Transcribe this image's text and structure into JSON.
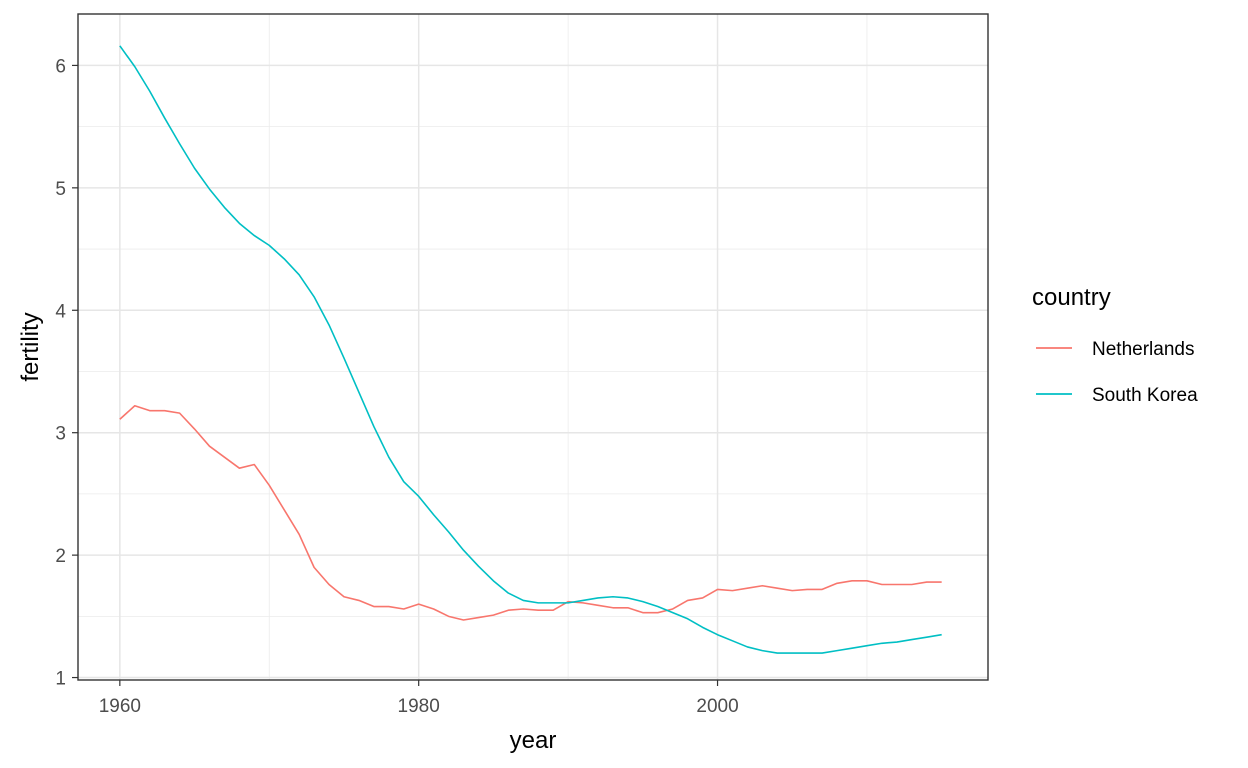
{
  "chart_data": {
    "type": "line",
    "title": "",
    "xlabel": "year",
    "ylabel": "fertility",
    "xlim": [
      1957.2,
      2018.1
    ],
    "ylim": [
      0.98,
      6.42
    ],
    "xticks": [
      1960,
      1980,
      2000
    ],
    "yticks": [
      1,
      2,
      3,
      4,
      5,
      6
    ],
    "grid": true,
    "legend": {
      "title": "country",
      "position": "right"
    },
    "series": [
      {
        "name": "Netherlands",
        "color": "#F8766D",
        "x": [
          1960,
          1961,
          1962,
          1963,
          1964,
          1965,
          1966,
          1967,
          1968,
          1969,
          1970,
          1971,
          1972,
          1973,
          1974,
          1975,
          1976,
          1977,
          1978,
          1979,
          1980,
          1981,
          1982,
          1983,
          1984,
          1985,
          1986,
          1987,
          1988,
          1989,
          1990,
          1991,
          1992,
          1993,
          1994,
          1995,
          1996,
          1997,
          1998,
          1999,
          2000,
          2001,
          2002,
          2003,
          2004,
          2005,
          2006,
          2007,
          2008,
          2009,
          2010,
          2011,
          2012,
          2013,
          2014,
          2015
        ],
        "y": [
          3.11,
          3.22,
          3.18,
          3.18,
          3.16,
          3.03,
          2.89,
          2.8,
          2.71,
          2.74,
          2.57,
          2.37,
          2.17,
          1.9,
          1.76,
          1.66,
          1.63,
          1.58,
          1.58,
          1.56,
          1.6,
          1.56,
          1.5,
          1.47,
          1.49,
          1.51,
          1.55,
          1.56,
          1.55,
          1.55,
          1.62,
          1.61,
          1.59,
          1.57,
          1.57,
          1.53,
          1.53,
          1.56,
          1.63,
          1.65,
          1.72,
          1.71,
          1.73,
          1.75,
          1.73,
          1.71,
          1.72,
          1.72,
          1.77,
          1.79,
          1.79,
          1.76,
          1.76,
          1.76,
          1.78,
          1.78
        ]
      },
      {
        "name": "South Korea",
        "color": "#00BFC4",
        "x": [
          1960,
          1961,
          1962,
          1963,
          1964,
          1965,
          1966,
          1967,
          1968,
          1969,
          1970,
          1971,
          1972,
          1973,
          1974,
          1975,
          1976,
          1977,
          1978,
          1979,
          1980,
          1981,
          1982,
          1983,
          1984,
          1985,
          1986,
          1987,
          1988,
          1989,
          1990,
          1991,
          1992,
          1993,
          1994,
          1995,
          1996,
          1997,
          1998,
          1999,
          2000,
          2001,
          2002,
          2003,
          2004,
          2005,
          2006,
          2007,
          2008,
          2009,
          2010,
          2011,
          2012,
          2013,
          2014,
          2015
        ],
        "y": [
          6.16,
          5.99,
          5.79,
          5.57,
          5.36,
          5.16,
          4.99,
          4.84,
          4.71,
          4.61,
          4.53,
          4.42,
          4.29,
          4.11,
          3.88,
          3.61,
          3.33,
          3.05,
          2.8,
          2.6,
          2.48,
          2.33,
          2.19,
          2.04,
          1.91,
          1.79,
          1.69,
          1.63,
          1.61,
          1.61,
          1.61,
          1.63,
          1.65,
          1.66,
          1.65,
          1.62,
          1.58,
          1.53,
          1.48,
          1.41,
          1.35,
          1.3,
          1.25,
          1.22,
          1.2,
          1.2,
          1.2,
          1.2,
          1.22,
          1.24,
          1.26,
          1.28,
          1.29,
          1.31,
          1.33,
          1.35
        ]
      }
    ]
  }
}
